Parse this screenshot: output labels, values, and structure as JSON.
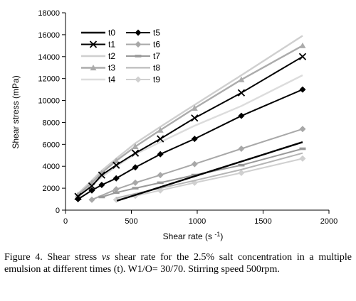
{
  "chart_data": {
    "type": "line",
    "xlabel": "Shear rate (s",
    "xlabel_sup": "-1",
    "xlabel_close": ")",
    "ylabel": "Shear stress (mPa)",
    "xlim": [
      0,
      2000
    ],
    "ylim": [
      0,
      18000
    ],
    "x_ticks": [
      0,
      500,
      1000,
      1500,
      2000
    ],
    "y_ticks": [
      0,
      2000,
      4000,
      6000,
      8000,
      10000,
      12000,
      14000,
      16000,
      18000
    ],
    "grid": false,
    "legend_position": "top-left",
    "series": [
      {
        "name": "t0",
        "color": "#000000",
        "width": 2.4,
        "marker": "none",
        "x": [
          390,
          1800
        ],
        "y": [
          850,
          6200
        ]
      },
      {
        "name": "t1",
        "color": "#000000",
        "width": 2.0,
        "marker": "x",
        "x": [
          95,
          200,
          275,
          385,
          530,
          720,
          980,
          1335,
          1800
        ],
        "y": [
          1250,
          2200,
          3200,
          4100,
          5200,
          6500,
          8400,
          10700,
          14000
        ]
      },
      {
        "name": "t2",
        "color": "#cfcfcf",
        "width": 2.4,
        "marker": "none",
        "x": [
          95,
          200,
          275,
          385,
          530,
          720,
          980,
          1335,
          1800
        ],
        "y": [
          1500,
          2700,
          3600,
          4700,
          6100,
          7600,
          9600,
          12300,
          15900
        ]
      },
      {
        "name": "t3",
        "color": "#ababab",
        "width": 2.4,
        "marker": "triangle",
        "x": [
          95,
          200,
          275,
          385,
          530,
          720,
          980,
          1335,
          1800
        ],
        "y": [
          1400,
          2500,
          3400,
          4500,
          5800,
          7300,
          9300,
          11900,
          15000
        ]
      },
      {
        "name": "t4",
        "color": "#dcdcdc",
        "width": 2.4,
        "marker": "none",
        "x": [
          95,
          200,
          275,
          385,
          530,
          720,
          980,
          1335,
          1800
        ],
        "y": [
          1300,
          2300,
          3000,
          4000,
          5100,
          6200,
          7700,
          9500,
          12300
        ]
      },
      {
        "name": "t5",
        "color": "#000000",
        "width": 2.0,
        "marker": "diamond",
        "x": [
          95,
          200,
          275,
          385,
          530,
          720,
          980,
          1335,
          1800
        ],
        "y": [
          1000,
          1800,
          2300,
          2900,
          3900,
          5100,
          6500,
          8600,
          11000
        ]
      },
      {
        "name": "t6",
        "color": "#a8a8a8",
        "width": 2.0,
        "marker": "diamond",
        "x": [
          200,
          385,
          530,
          720,
          980,
          1335,
          1800
        ],
        "y": [
          950,
          1900,
          2500,
          3200,
          4200,
          5600,
          7400
        ]
      },
      {
        "name": "t7",
        "color": "#999999",
        "width": 2.0,
        "marker": "dash",
        "x": [
          275,
          385,
          530,
          720,
          980,
          1335,
          1800
        ],
        "y": [
          1200,
          1600,
          2000,
          2500,
          3200,
          4100,
          5600
        ]
      },
      {
        "name": "t8",
        "color": "#b5b5b5",
        "width": 2.0,
        "marker": "none",
        "x": [
          385,
          530,
          720,
          980,
          1335,
          1800
        ],
        "y": [
          1100,
          1500,
          2000,
          2700,
          3700,
          5200
        ]
      },
      {
        "name": "t9",
        "color": "#d0d0d0",
        "width": 2.0,
        "marker": "diamond",
        "x": [
          385,
          530,
          720,
          980,
          1335,
          1800
        ],
        "y": [
          950,
          1300,
          1800,
          2500,
          3400,
          4700
        ]
      }
    ]
  },
  "caption": {
    "prefix": "Figure 4. Shear stress ",
    "italic": "vs",
    "suffix": " shear rate for the 2.5% salt concentration in a multiple emulsion at different times (t). W1/O= 30/70. Stirring speed 500rpm."
  }
}
